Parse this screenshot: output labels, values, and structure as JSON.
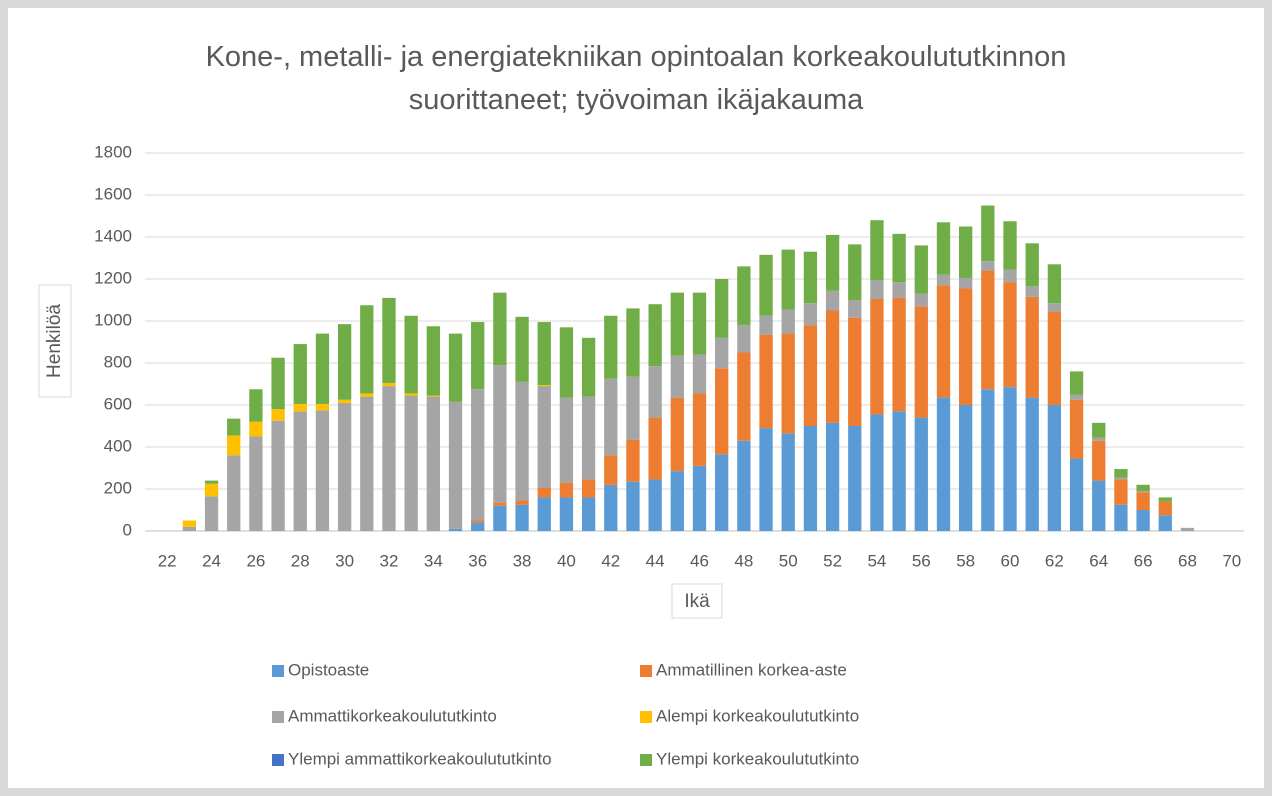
{
  "chart_data": {
    "type": "stacked_bar",
    "title": "Kone-, metalli- ja energiatekniikan opintoalan korkeakoulututkinnon suorittaneet; työvoiman ikäjakauma",
    "xlabel": "Ikä",
    "ylabel": "Henkilöä",
    "x": [
      23,
      24,
      25,
      26,
      27,
      28,
      29,
      30,
      31,
      32,
      33,
      34,
      35,
      36,
      37,
      38,
      39,
      40,
      41,
      42,
      43,
      44,
      45,
      46,
      47,
      48,
      49,
      50,
      51,
      52,
      53,
      54,
      55,
      56,
      57,
      58,
      59,
      60,
      61,
      62,
      63,
      64,
      65,
      66,
      67,
      68
    ],
    "xlim": [
      21,
      71
    ],
    "xticks": [
      22,
      24,
      26,
      28,
      30,
      32,
      34,
      36,
      38,
      40,
      42,
      44,
      46,
      48,
      50,
      52,
      54,
      56,
      58,
      60,
      62,
      64,
      66,
      68,
      70
    ],
    "ylim": [
      0,
      1800
    ],
    "yticks": [
      0,
      200,
      400,
      600,
      800,
      1000,
      1200,
      1400,
      1600,
      1800
    ],
    "grid": true,
    "series": [
      {
        "name": "Opistoaste",
        "color": "#5b9bd5",
        "values": [
          0,
          0,
          0,
          0,
          0,
          0,
          0,
          0,
          0,
          0,
          0,
          0,
          10,
          40,
          120,
          125,
          160,
          160,
          160,
          220,
          235,
          245,
          285,
          310,
          365,
          430,
          490,
          465,
          500,
          515,
          500,
          555,
          570,
          540,
          635,
          600,
          675,
          685,
          635,
          600,
          345,
          240,
          125,
          100,
          75,
          0
        ]
      },
      {
        "name": "Ammatillinen korkea-aste",
        "color": "#ed7d31",
        "values": [
          0,
          0,
          0,
          0,
          0,
          0,
          0,
          0,
          0,
          0,
          0,
          0,
          0,
          10,
          15,
          20,
          45,
          70,
          85,
          140,
          200,
          295,
          350,
          345,
          410,
          420,
          445,
          475,
          480,
          535,
          515,
          550,
          540,
          530,
          535,
          555,
          565,
          500,
          480,
          445,
          280,
          190,
          120,
          85,
          65,
          0
        ]
      },
      {
        "name": "Ammattikorkeakoulututkinto",
        "color": "#a5a5a5",
        "values": [
          20,
          165,
          360,
          450,
          525,
          570,
          575,
          610,
          640,
          690,
          645,
          640,
          605,
          625,
          655,
          565,
          485,
          405,
          395,
          365,
          300,
          245,
          200,
          185,
          145,
          130,
          90,
          115,
          105,
          95,
          85,
          90,
          75,
          60,
          50,
          50,
          45,
          60,
          50,
          40,
          25,
          15,
          10,
          5,
          0,
          15
        ]
      },
      {
        "name": "Alempi korkeakoulututkinto",
        "color": "#ffc000",
        "values": [
          30,
          60,
          95,
          70,
          55,
          35,
          30,
          15,
          15,
          15,
          10,
          5,
          0,
          0,
          0,
          0,
          5,
          0,
          0,
          0,
          0,
          0,
          0,
          0,
          0,
          0,
          0,
          0,
          0,
          0,
          0,
          0,
          0,
          0,
          0,
          0,
          0,
          0,
          0,
          0,
          0,
          0,
          0,
          0,
          0,
          0
        ]
      },
      {
        "name": "Ylempi ammattikorkeakoulututkinto",
        "color": "#4472c4",
        "values": [
          0,
          0,
          0,
          0,
          0,
          0,
          0,
          0,
          0,
          0,
          0,
          0,
          0,
          0,
          0,
          0,
          0,
          0,
          0,
          0,
          0,
          0,
          0,
          0,
          0,
          0,
          0,
          0,
          0,
          0,
          0,
          0,
          0,
          0,
          0,
          0,
          0,
          0,
          0,
          0,
          0,
          0,
          0,
          0,
          0,
          0
        ]
      },
      {
        "name": "Ylempi korkeakoulututkinto",
        "color": "#70ad47",
        "values": [
          0,
          15,
          80,
          155,
          245,
          285,
          335,
          360,
          420,
          405,
          370,
          330,
          325,
          320,
          345,
          310,
          300,
          335,
          280,
          300,
          325,
          295,
          300,
          295,
          280,
          280,
          290,
          285,
          245,
          265,
          265,
          285,
          230,
          230,
          250,
          245,
          265,
          230,
          205,
          185,
          110,
          70,
          40,
          30,
          20,
          0
        ]
      }
    ]
  }
}
